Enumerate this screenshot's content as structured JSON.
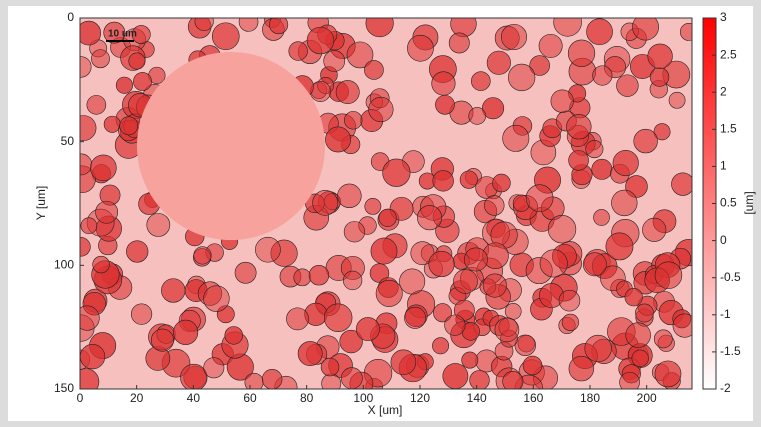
{
  "chart_data": {
    "type": "heatmap",
    "x_label": "X [um]",
    "y_label": "Y [um]",
    "xlim": [
      0,
      216
    ],
    "xticks": [
      0,
      20,
      40,
      60,
      80,
      100,
      120,
      140,
      160,
      180,
      200
    ],
    "ylim": [
      0,
      150
    ],
    "yticks": [
      0,
      50,
      100,
      150
    ],
    "y_inverted": true,
    "colorbar": {
      "label": "[um]",
      "lim": [
        -2,
        3
      ],
      "ticks": [
        3,
        2.5,
        2,
        1.5,
        1,
        0.5,
        0,
        -0.5,
        -1,
        -1.5,
        -2
      ],
      "colors": [
        "#ffffff",
        "#ff0000"
      ]
    },
    "annotation": "10 um"
  }
}
